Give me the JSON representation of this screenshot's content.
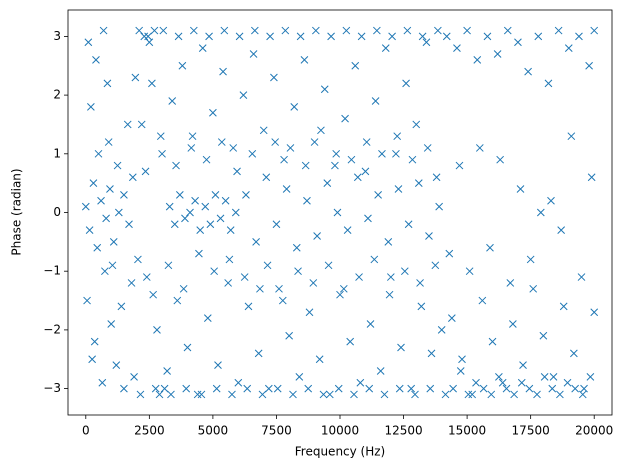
{
  "chart_data": {
    "type": "scatter",
    "xlabel": "Frequency (Hz)",
    "ylabel": "Phase (radian)",
    "color": "#1f77b4",
    "marker": "x",
    "xlim": [
      -700,
      20700
    ],
    "ylim": [
      -3.45,
      3.45
    ],
    "xticks": [
      0,
      2500,
      5000,
      7500,
      10000,
      12500,
      15000,
      17500,
      20000
    ],
    "yticks": [
      {
        "value": -3,
        "label": "−3"
      },
      {
        "value": -2,
        "label": "−2"
      },
      {
        "value": -1,
        "label": "−1"
      },
      0,
      1,
      2,
      3
    ],
    "x": [
      0,
      150,
      300,
      450,
      600,
      800,
      950,
      1100,
      1300,
      1500,
      1700,
      1850,
      200,
      400,
      700,
      900,
      50,
      350,
      650,
      1000,
      1200,
      1500,
      1800,
      1950,
      2100,
      2300,
      2500,
      2700,
      2900,
      3100,
      3300,
      3500,
      3700,
      3900,
      4100,
      4300,
      4500,
      4700,
      4900,
      5100,
      5300,
      5500,
      5700,
      5900,
      2200,
      2600,
      3000,
      3400,
      3800,
      4200,
      4600,
      5000,
      5400,
      5800,
      6200,
      6600,
      7000,
      7400,
      7800,
      8200,
      8600,
      9000,
      9400,
      9800,
      10200,
      10600,
      11000,
      11400,
      11800,
      12200,
      12600,
      13000,
      13400,
      13800,
      14200,
      14600,
      15000,
      15400,
      15800,
      16200,
      16600,
      17000,
      17400,
      17800,
      18200,
      18600,
      19000,
      19400,
      19800,
      20000,
      2400,
      2800,
      3200,
      3600,
      4000,
      4400,
      4800,
      5200,
      5600,
      6000,
      6400,
      6800,
      7200,
      7600,
      8000,
      8400,
      8800,
      9200,
      9600,
      10000,
      10400,
      10800,
      11200,
      11600,
      12000,
      12400,
      12800,
      13200,
      13600,
      14000,
      14400,
      14800,
      15200,
      15600,
      16000,
      16400,
      16800,
      17200,
      17600,
      18000,
      18400,
      18800,
      19200,
      19600,
      20000,
      6300,
      6700,
      7100,
      7500,
      7900,
      8300,
      8700,
      9100,
      9500,
      9900,
      10300,
      10700,
      11100,
      11500,
      11900,
      12300,
      12700,
      13100,
      13500,
      13900,
      14300,
      14700,
      15100,
      15500,
      15900,
      16300,
      16700,
      17100,
      17500,
      17900,
      18300,
      18700,
      19100,
      19500,
      19900,
      2050,
      2350,
      2650,
      2950,
      3250,
      3550,
      3850,
      4150,
      4450,
      4750,
      5050,
      5350,
      5650,
      5950,
      6250,
      6550,
      6850,
      7150,
      7450,
      7750,
      8050,
      8350,
      8650,
      8950,
      9250,
      9550,
      9850,
      10150,
      10450,
      10750,
      11050,
      11350,
      11650,
      11950,
      12250,
      12550,
      12850,
      13150,
      13450,
      13750,
      2150,
      2450,
      2750,
      3050,
      3350,
      3650,
      3950,
      4250,
      4550,
      4850,
      5150,
      5450,
      5750,
      6050,
      6350,
      6650,
      6950,
      7250,
      7550,
      7850,
      8150,
      8450,
      8750,
      9050,
      9350,
      9650,
      9950,
      10250,
      10550,
      10850,
      11150,
      11450,
      11750,
      12050,
      12350,
      12650,
      12950,
      13250,
      13550,
      13850,
      14150,
      14450,
      14750,
      15050,
      15350,
      15650,
      15950,
      16250,
      16550,
      16850,
      17150,
      17450,
      17750,
      18050,
      18350,
      18650,
      18950,
      19250,
      19550,
      19850,
      100,
      250,
      500,
      750,
      850,
      1050,
      1250,
      1400,
      1650,
      1900
    ],
    "values": [
      0.1,
      -0.3,
      0.5,
      -0.6,
      0.2,
      -0.1,
      0.4,
      -0.5,
      0.0,
      0.3,
      -0.2,
      0.6,
      1.8,
      2.6,
      3.1,
      1.2,
      -1.5,
      -2.2,
      -2.9,
      -1.9,
      -2.6,
      -3.0,
      -1.2,
      2.3,
      3.1,
      3.0,
      2.9,
      3.1,
      -3.1,
      -3.0,
      0.1,
      -0.2,
      0.3,
      -0.1,
      0.0,
      0.2,
      -0.3,
      0.1,
      -0.2,
      0.3,
      -0.1,
      0.2,
      -0.3,
      0.0,
      1.5,
      2.2,
      1.0,
      1.9,
      2.5,
      1.3,
      2.8,
      1.7,
      2.4,
      1.1,
      2.0,
      2.7,
      1.4,
      2.3,
      0.9,
      1.8,
      2.6,
      1.2,
      2.1,
      0.8,
      1.6,
      2.5,
      0.7,
      1.9,
      2.8,
      1.0,
      2.2,
      1.5,
      2.9,
      0.6,
      3.0,
      2.8,
      3.1,
      2.6,
      3.0,
      2.7,
      3.1,
      2.9,
      2.4,
      3.0,
      2.2,
      3.1,
      2.8,
      3.0,
      2.5,
      3.1,
      -1.1,
      -2.0,
      -2.7,
      -1.5,
      -2.3,
      -3.1,
      -1.8,
      -2.6,
      -1.2,
      -2.9,
      -1.6,
      -2.4,
      -3.0,
      -1.3,
      -2.1,
      -2.8,
      -1.7,
      -2.5,
      -3.1,
      -1.4,
      -2.2,
      -2.9,
      -1.9,
      -2.7,
      -1.1,
      -2.3,
      -3.0,
      -1.6,
      -2.4,
      -2.0,
      -1.8,
      -2.5,
      -3.1,
      -1.5,
      -2.2,
      -2.9,
      -1.9,
      -2.6,
      -1.3,
      -2.1,
      -2.8,
      -1.6,
      -2.4,
      -3.0,
      -1.7,
      0.3,
      -0.5,
      0.6,
      -0.2,
      0.4,
      -0.6,
      0.2,
      -0.4,
      0.5,
      0.0,
      -0.3,
      0.6,
      -0.1,
      0.3,
      -0.5,
      0.4,
      -0.2,
      0.5,
      -0.4,
      0.1,
      -0.7,
      0.8,
      -1.0,
      1.1,
      -0.6,
      0.9,
      -1.2,
      0.4,
      -0.8,
      0.0,
      0.2,
      -0.3,
      1.3,
      -1.1,
      0.6,
      -0.8,
      0.7,
      -1.4,
      1.3,
      -0.9,
      0.8,
      -1.3,
      1.1,
      -0.7,
      0.9,
      -1.0,
      1.2,
      -0.8,
      0.7,
      -1.1,
      1.0,
      -1.3,
      -0.9,
      1.2,
      -1.5,
      1.1,
      -1.0,
      0.8,
      -1.2,
      1.4,
      -0.9,
      1.0,
      -1.3,
      0.9,
      -1.1,
      1.2,
      -0.8,
      1.0,
      -1.4,
      1.3,
      -1.0,
      0.9,
      -1.2,
      1.1,
      -0.9,
      -3.1,
      3.0,
      -3.0,
      3.1,
      -3.1,
      3.0,
      -3.0,
      3.1,
      -3.1,
      3.0,
      -3.0,
      3.1,
      -3.1,
      3.0,
      -3.0,
      3.1,
      -3.1,
      3.0,
      -3.0,
      3.1,
      -3.1,
      3.0,
      -3.0,
      3.1,
      -3.1,
      3.0,
      -3.0,
      3.1,
      -3.1,
      3.0,
      -3.0,
      3.1,
      -3.1,
      3.0,
      -3.0,
      3.1,
      -3.1,
      3.0,
      -3.0,
      3.1,
      -3.1,
      -3.0,
      -2.7,
      -3.1,
      -2.9,
      -3.0,
      -3.1,
      -2.8,
      -3.0,
      -3.1,
      -2.9,
      -3.0,
      -3.1,
      -2.8,
      -3.0,
      -3.1,
      -2.9,
      -3.0,
      -3.1,
      -2.8,
      2.9,
      -2.5,
      1.0,
      -1.0,
      2.2,
      -0.9,
      0.8,
      -1.6,
      1.5,
      -2.8
    ]
  }
}
